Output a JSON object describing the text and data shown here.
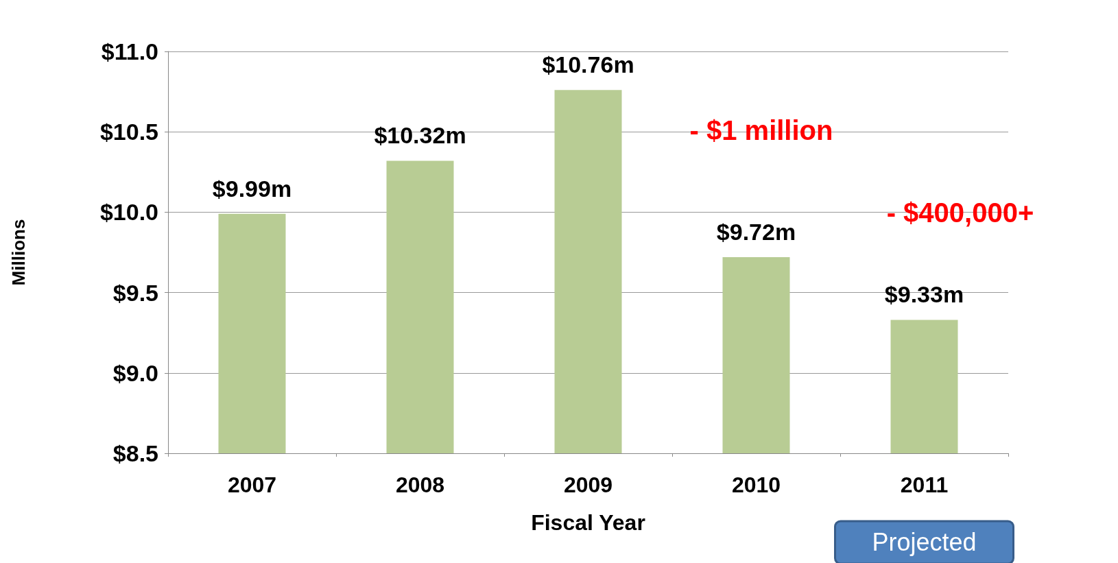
{
  "chart_data": {
    "type": "bar",
    "xlabel": "Fiscal Year",
    "ylabel": "Millions",
    "categories": [
      "2007",
      "2008",
      "2009",
      "2010",
      "2011"
    ],
    "values": [
      9.99,
      10.32,
      10.76,
      9.72,
      9.33
    ],
    "value_labels": [
      "$9.99m",
      "$10.32m",
      "$10.76m",
      "$9.72m",
      "$9.33m"
    ],
    "color": "#b8cc94",
    "ylim": [
      8.5,
      11
    ],
    "yticks": [
      {
        "value": 8.5,
        "label": "$8.5"
      },
      {
        "value": 9,
        "label": "$9.0"
      },
      {
        "value": 9.5,
        "label": "$9.5"
      },
      {
        "value": 10,
        "label": "$10.0"
      },
      {
        "value": 10.5,
        "label": "$10.5"
      },
      {
        "value": 11,
        "label": "$11.0"
      }
    ],
    "grid": "y",
    "annotations": [
      "- $1 million",
      "- $400,000+",
      "Projected"
    ]
  }
}
